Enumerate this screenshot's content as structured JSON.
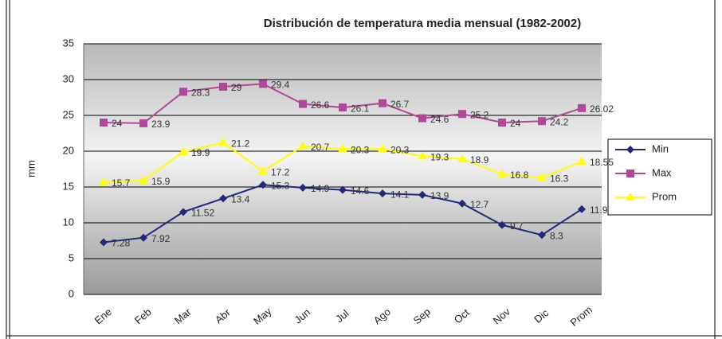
{
  "chart_data": {
    "type": "line",
    "title": "Distribución de temperatura media mensual (1982-2002)",
    "y_label": "mm",
    "categories": [
      "Ene",
      "Feb",
      "Mar",
      "Abr",
      "May",
      "Jun",
      "Jul",
      "Ago",
      "Sep",
      "Oct",
      "Nov",
      "Dic",
      "Prom"
    ],
    "series": [
      {
        "name": "Min",
        "color": "#1f2a7a",
        "marker": "diamond",
        "values": [
          7.28,
          7.92,
          11.52,
          13.4,
          15.3,
          14.9,
          14.6,
          14.1,
          13.9,
          12.7,
          9.7,
          8.3,
          11.9
        ]
      },
      {
        "name": "Max",
        "color": "#b0479a",
        "marker": "square",
        "values": [
          24,
          23.9,
          28.3,
          29,
          29.4,
          26.6,
          26.1,
          26.7,
          24.6,
          25.2,
          24,
          24.2,
          26.02
        ]
      },
      {
        "name": "Prom",
        "color": "#ffff00",
        "marker": "triangle",
        "values": [
          15.7,
          15.9,
          19.9,
          21.2,
          17.2,
          20.7,
          20.3,
          20.3,
          19.3,
          18.9,
          16.8,
          16.3,
          18.55
        ]
      }
    ],
    "ylim": [
      0,
      35
    ],
    "yticks": [
      0,
      5,
      10,
      15,
      20,
      25,
      30,
      35
    ],
    "grid": true,
    "legend": "right"
  }
}
